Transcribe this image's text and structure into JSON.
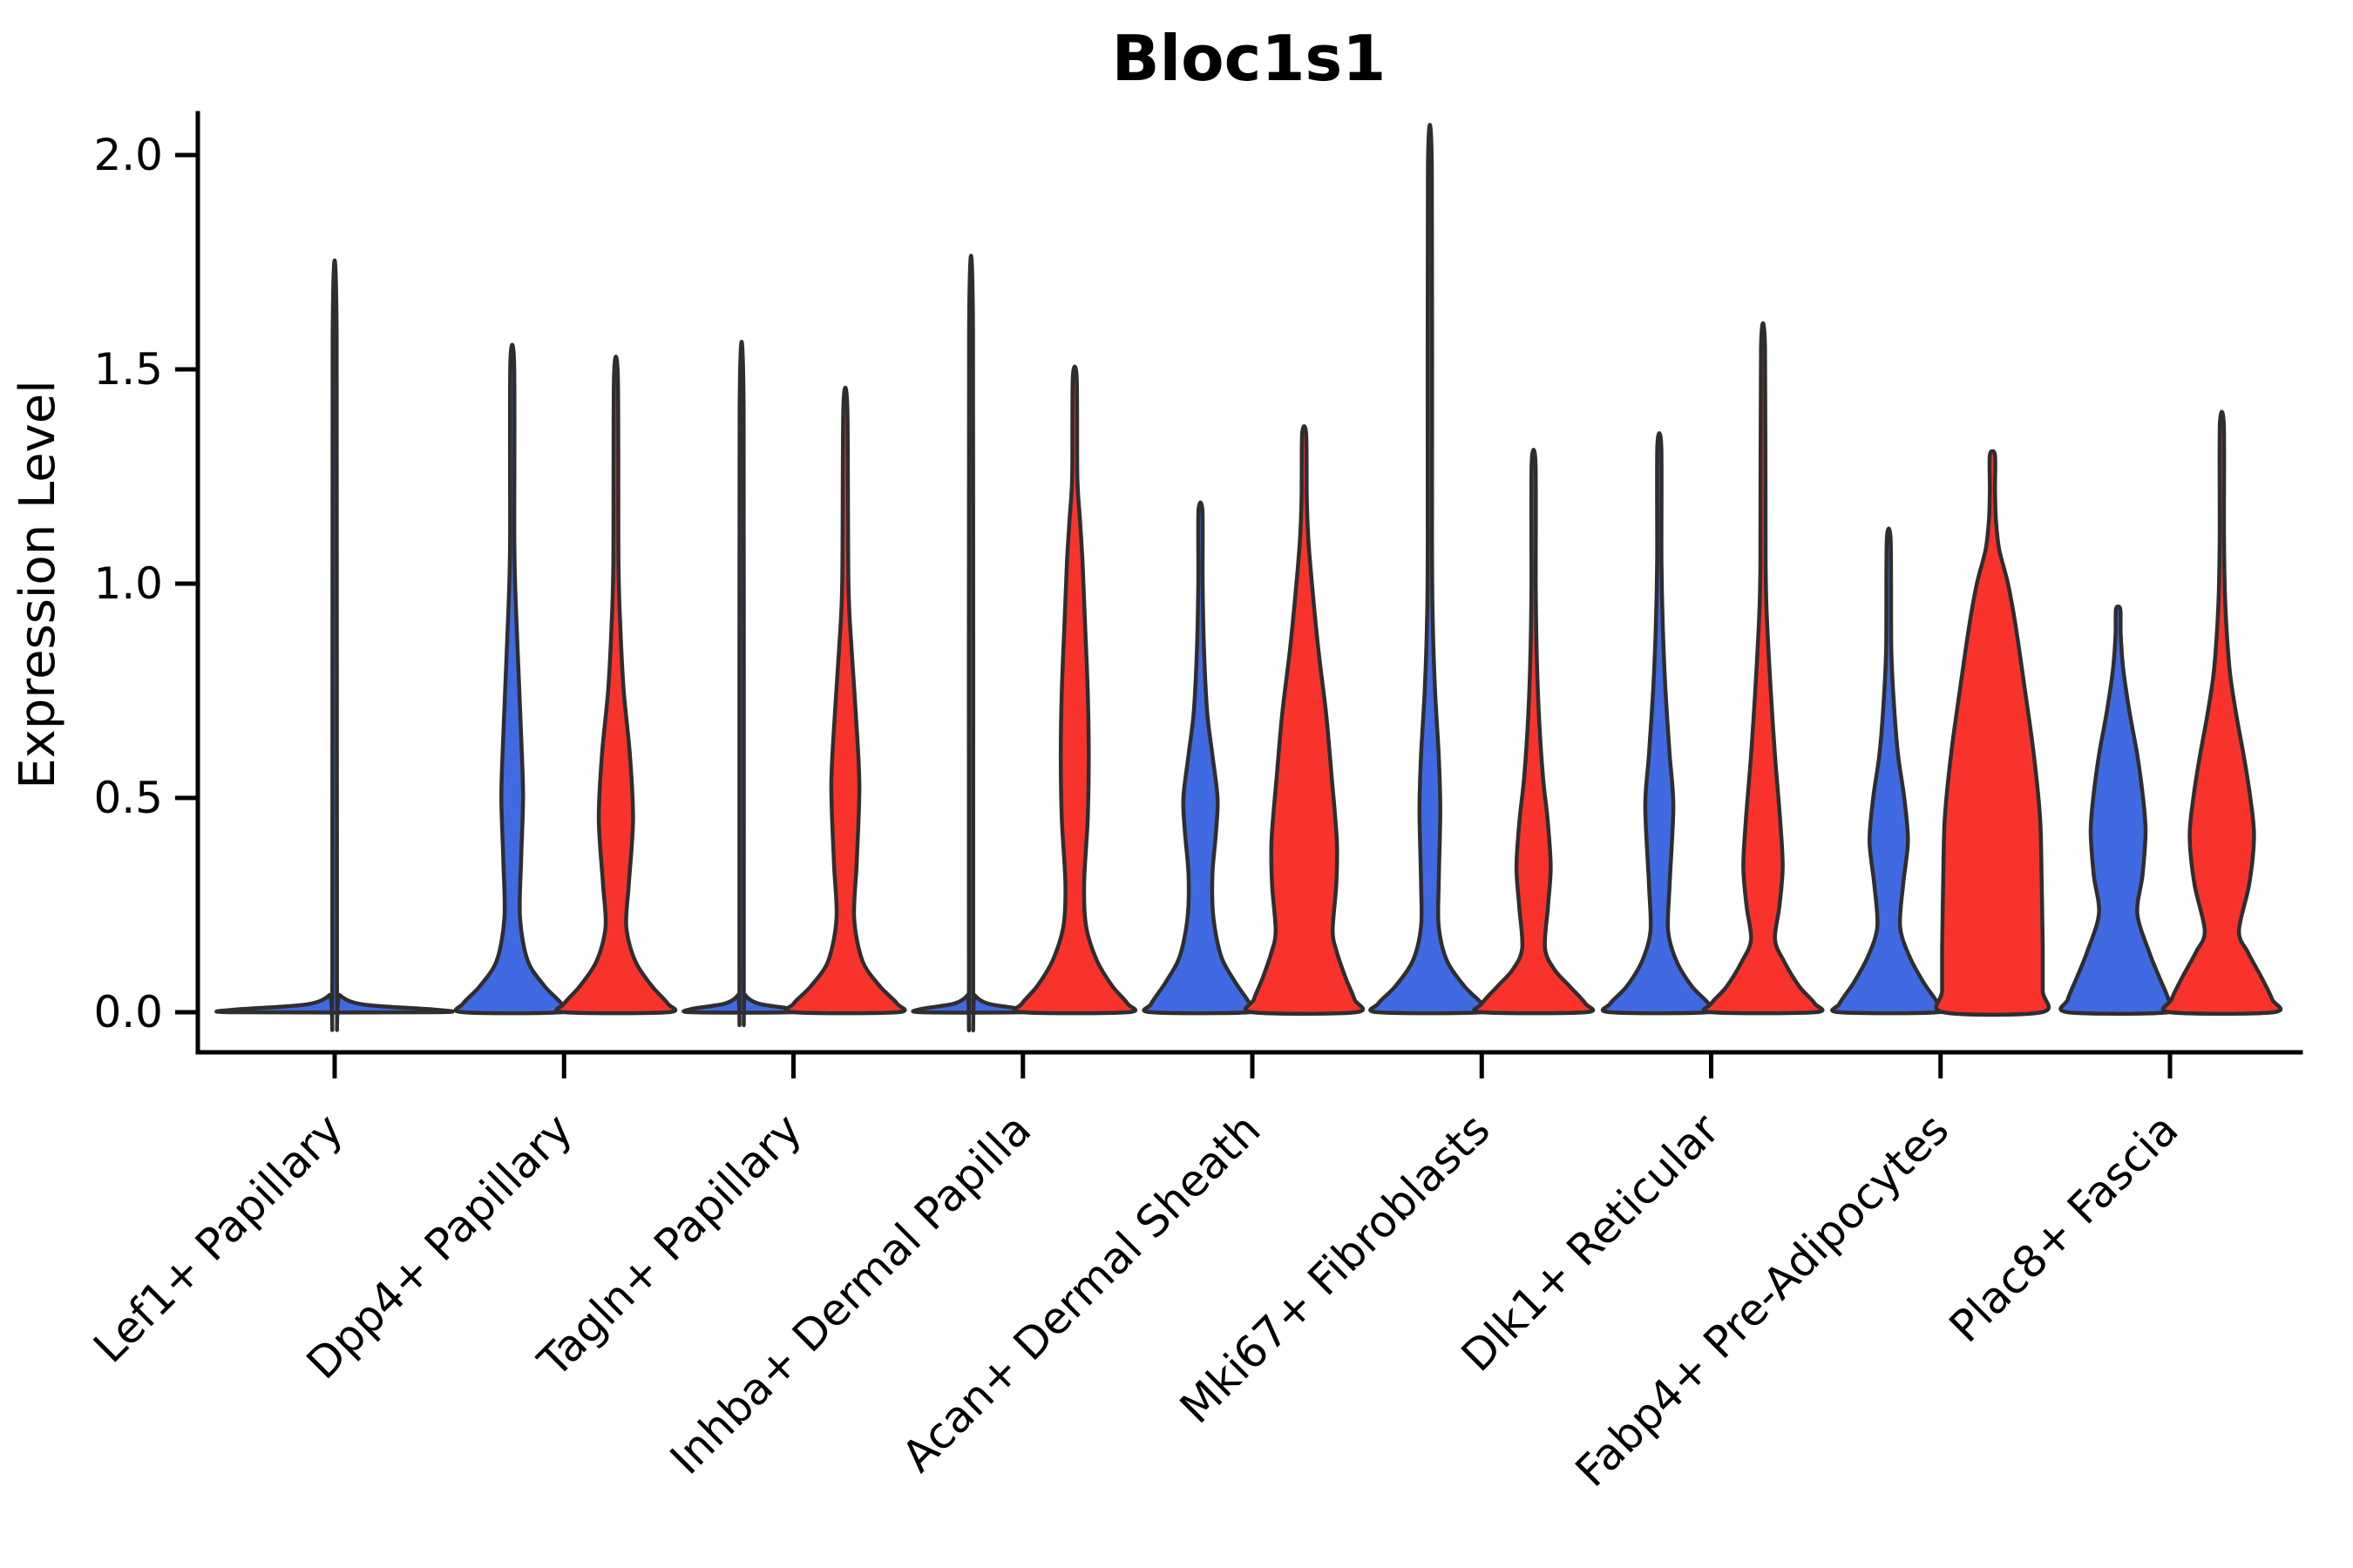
{
  "chart_data": {
    "type": "violin",
    "title": "Bloc1s1",
    "ylabel": "Expression Level",
    "xlabel": "",
    "ylim": [
      0,
      2.05
    ],
    "grid": "off",
    "legend_position": "none",
    "yticks": [
      {
        "value": 0.0,
        "label": "0.0"
      },
      {
        "value": 0.5,
        "label": "0.5"
      },
      {
        "value": 1.0,
        "label": "1.0"
      },
      {
        "value": 1.5,
        "label": "1.5"
      },
      {
        "value": 2.0,
        "label": "2.0"
      }
    ],
    "categories": [
      "Lef1+ Papillary",
      "Dpp4+ Papillary",
      "Tagln+ Papillary",
      "Inhba+ Dermal Papilla",
      "Acan+ Dermal Sheath",
      "Mki67+ Fibroblasts",
      "Dlk1+ Reticular",
      "Fabp4+ Pre-Adipocytes",
      "Plac8+ Fascia"
    ],
    "colors": {
      "blue_series": "#4169e1",
      "red_series": "#f8332c",
      "outline": "#2e2e2e"
    },
    "violins": [
      {
        "category_index": 0,
        "position": "center",
        "color": "#4169e1",
        "max_expression": 1.58,
        "profile": [
          [
            0,
            1.97
          ],
          [
            0.006,
            1.93
          ],
          [
            0.018,
            0.55
          ],
          [
            0.04,
            0.1
          ],
          [
            0.07,
            0.045
          ],
          [
            1.58,
            0.038
          ]
        ]
      },
      {
        "category_index": 1,
        "position": "left",
        "color": "#4169e1",
        "max_expression": 1.51,
        "profile": [
          [
            0,
            0.95
          ],
          [
            0.02,
            0.95
          ],
          [
            0.06,
            0.63
          ],
          [
            0.12,
            0.3
          ],
          [
            0.22,
            0.15
          ],
          [
            0.35,
            0.17
          ],
          [
            0.5,
            0.21
          ],
          [
            0.62,
            0.18
          ],
          [
            0.8,
            0.12
          ],
          [
            0.95,
            0.07
          ],
          [
            1.1,
            0.042
          ],
          [
            1.51,
            0.038
          ]
        ]
      },
      {
        "category_index": 1,
        "position": "right",
        "color": "#f8332c",
        "max_expression": 1.48,
        "profile": [
          [
            0,
            1.0
          ],
          [
            0.02,
            1.0
          ],
          [
            0.06,
            0.7
          ],
          [
            0.12,
            0.37
          ],
          [
            0.2,
            0.2
          ],
          [
            0.3,
            0.25
          ],
          [
            0.45,
            0.33
          ],
          [
            0.6,
            0.27
          ],
          [
            0.75,
            0.15
          ],
          [
            0.9,
            0.085
          ],
          [
            1.05,
            0.05
          ],
          [
            1.48,
            0.038
          ]
        ]
      },
      {
        "category_index": 2,
        "position": "left",
        "color": "#4169e1",
        "max_expression": 1.41,
        "profile": [
          [
            0,
            0.97
          ],
          [
            0.008,
            0.95
          ],
          [
            0.02,
            0.33
          ],
          [
            0.04,
            0.07
          ],
          [
            0.07,
            0.042
          ],
          [
            1.41,
            0.038
          ]
        ]
      },
      {
        "category_index": 2,
        "position": "right",
        "color": "#f8332c",
        "max_expression": 1.41,
        "profile": [
          [
            0,
            1.0
          ],
          [
            0.02,
            1.0
          ],
          [
            0.06,
            0.67
          ],
          [
            0.12,
            0.33
          ],
          [
            0.22,
            0.17
          ],
          [
            0.35,
            0.22
          ],
          [
            0.53,
            0.27
          ],
          [
            0.7,
            0.2
          ],
          [
            0.85,
            0.12
          ],
          [
            1.0,
            0.06
          ],
          [
            1.41,
            0.038
          ]
        ]
      },
      {
        "category_index": 3,
        "position": "left",
        "color": "#4169e1",
        "max_expression": 1.59,
        "profile": [
          [
            0,
            0.97
          ],
          [
            0.008,
            0.95
          ],
          [
            0.02,
            0.33
          ],
          [
            0.04,
            0.07
          ],
          [
            0.07,
            0.042
          ],
          [
            1.59,
            0.038
          ]
        ]
      },
      {
        "category_index": 3,
        "position": "right",
        "color": "#f8332c",
        "max_expression": 1.48,
        "profile": [
          [
            0,
            1.02
          ],
          [
            0.02,
            1.02
          ],
          [
            0.06,
            0.73
          ],
          [
            0.12,
            0.43
          ],
          [
            0.2,
            0.22
          ],
          [
            0.3,
            0.18
          ],
          [
            0.45,
            0.25
          ],
          [
            0.6,
            0.27
          ],
          [
            0.75,
            0.25
          ],
          [
            0.9,
            0.2
          ],
          [
            1.05,
            0.15
          ],
          [
            1.15,
            0.1
          ],
          [
            1.25,
            0.05
          ],
          [
            1.48,
            0.038
          ]
        ]
      },
      {
        "category_index": 4,
        "position": "left",
        "color": "#4169e1",
        "max_expression": 1.17,
        "profile": [
          [
            0,
            0.95
          ],
          [
            0.02,
            0.95
          ],
          [
            0.07,
            0.67
          ],
          [
            0.13,
            0.4
          ],
          [
            0.22,
            0.25
          ],
          [
            0.32,
            0.23
          ],
          [
            0.42,
            0.3
          ],
          [
            0.5,
            0.33
          ],
          [
            0.6,
            0.23
          ],
          [
            0.7,
            0.13
          ],
          [
            0.85,
            0.067
          ],
          [
            1.0,
            0.042
          ],
          [
            1.17,
            0.038
          ]
        ]
      },
      {
        "category_index": 4,
        "position": "right",
        "color": "#f8332c",
        "max_expression": 1.35,
        "profile": [
          [
            0,
            1.0
          ],
          [
            0.03,
            0.97
          ],
          [
            0.08,
            0.8
          ],
          [
            0.14,
            0.63
          ],
          [
            0.19,
            0.55
          ],
          [
            0.3,
            0.62
          ],
          [
            0.4,
            0.63
          ],
          [
            0.55,
            0.53
          ],
          [
            0.7,
            0.42
          ],
          [
            0.85,
            0.27
          ],
          [
            1.0,
            0.15
          ],
          [
            1.1,
            0.083
          ],
          [
            1.2,
            0.05
          ],
          [
            1.35,
            0.038
          ]
        ]
      },
      {
        "category_index": 5,
        "position": "left",
        "color": "#4169e1",
        "max_expression": 1.97,
        "profile": [
          [
            0,
            1.0
          ],
          [
            0.02,
            1.0
          ],
          [
            0.06,
            0.67
          ],
          [
            0.12,
            0.33
          ],
          [
            0.2,
            0.17
          ],
          [
            0.3,
            0.17
          ],
          [
            0.47,
            0.2
          ],
          [
            0.6,
            0.17
          ],
          [
            0.75,
            0.1
          ],
          [
            0.9,
            0.058
          ],
          [
            1.1,
            0.042
          ],
          [
            1.97,
            0.038
          ]
        ]
      },
      {
        "category_index": 5,
        "position": "right",
        "color": "#f8332c",
        "max_expression": 1.28,
        "profile": [
          [
            0,
            1.0
          ],
          [
            0.02,
            1.0
          ],
          [
            0.06,
            0.7
          ],
          [
            0.1,
            0.4
          ],
          [
            0.15,
            0.22
          ],
          [
            0.25,
            0.28
          ],
          [
            0.34,
            0.33
          ],
          [
            0.45,
            0.27
          ],
          [
            0.55,
            0.18
          ],
          [
            0.7,
            0.1
          ],
          [
            0.85,
            0.058
          ],
          [
            1.0,
            0.042
          ],
          [
            1.28,
            0.038
          ]
        ]
      },
      {
        "category_index": 6,
        "position": "left",
        "color": "#4169e1",
        "max_expression": 1.32,
        "profile": [
          [
            0,
            0.95
          ],
          [
            0.02,
            0.95
          ],
          [
            0.06,
            0.63
          ],
          [
            0.12,
            0.33
          ],
          [
            0.19,
            0.17
          ],
          [
            0.3,
            0.2
          ],
          [
            0.48,
            0.27
          ],
          [
            0.6,
            0.2
          ],
          [
            0.75,
            0.12
          ],
          [
            0.9,
            0.067
          ],
          [
            1.05,
            0.042
          ],
          [
            1.32,
            0.038
          ]
        ]
      },
      {
        "category_index": 6,
        "position": "right",
        "color": "#f8332c",
        "max_expression": 1.55,
        "profile": [
          [
            0,
            1.0
          ],
          [
            0.02,
            1.0
          ],
          [
            0.06,
            0.7
          ],
          [
            0.12,
            0.4
          ],
          [
            0.17,
            0.23
          ],
          [
            0.25,
            0.32
          ],
          [
            0.34,
            0.38
          ],
          [
            0.45,
            0.33
          ],
          [
            0.6,
            0.23
          ],
          [
            0.75,
            0.15
          ],
          [
            0.9,
            0.083
          ],
          [
            1.05,
            0.05
          ],
          [
            1.55,
            0.038
          ]
        ]
      },
      {
        "category_index": 7,
        "position": "left",
        "color": "#4169e1",
        "max_expression": 1.1,
        "profile": [
          [
            0,
            0.95
          ],
          [
            0.02,
            0.95
          ],
          [
            0.07,
            0.67
          ],
          [
            0.13,
            0.4
          ],
          [
            0.2,
            0.22
          ],
          [
            0.3,
            0.28
          ],
          [
            0.4,
            0.37
          ],
          [
            0.5,
            0.3
          ],
          [
            0.6,
            0.18
          ],
          [
            0.72,
            0.1
          ],
          [
            0.85,
            0.05
          ],
          [
            1.1,
            0.038
          ]
        ]
      },
      {
        "category_index": 7,
        "position": "right",
        "color": "#f8332c",
        "max_expression": 1.3,
        "profile": [
          [
            0,
            0.95
          ],
          [
            0.05,
            0.97
          ],
          [
            0.15,
            0.97
          ],
          [
            0.3,
            0.95
          ],
          [
            0.45,
            0.92
          ],
          [
            0.6,
            0.8
          ],
          [
            0.75,
            0.63
          ],
          [
            0.9,
            0.45
          ],
          [
            1.0,
            0.3
          ],
          [
            1.08,
            0.13
          ],
          [
            1.15,
            0.067
          ],
          [
            1.22,
            0.05
          ],
          [
            1.3,
            0.05
          ]
        ]
      },
      {
        "category_index": 8,
        "position": "left",
        "color": "#4169e1",
        "max_expression": 0.94,
        "profile": [
          [
            0,
            0.97
          ],
          [
            0.03,
            0.97
          ],
          [
            0.08,
            0.8
          ],
          [
            0.14,
            0.6
          ],
          [
            0.23,
            0.37
          ],
          [
            0.32,
            0.47
          ],
          [
            0.42,
            0.53
          ],
          [
            0.5,
            0.48
          ],
          [
            0.6,
            0.37
          ],
          [
            0.7,
            0.22
          ],
          [
            0.8,
            0.1
          ],
          [
            0.88,
            0.05
          ],
          [
            0.94,
            0.042
          ]
        ]
      },
      {
        "category_index": 8,
        "position": "right",
        "color": "#f8332c",
        "max_expression": 1.37,
        "profile": [
          [
            0,
            1.0
          ],
          [
            0.03,
            0.97
          ],
          [
            0.08,
            0.77
          ],
          [
            0.14,
            0.5
          ],
          [
            0.19,
            0.33
          ],
          [
            0.3,
            0.53
          ],
          [
            0.41,
            0.62
          ],
          [
            0.5,
            0.55
          ],
          [
            0.6,
            0.42
          ],
          [
            0.7,
            0.27
          ],
          [
            0.8,
            0.15
          ],
          [
            0.95,
            0.067
          ],
          [
            1.1,
            0.042
          ],
          [
            1.37,
            0.038
          ]
        ]
      }
    ]
  }
}
